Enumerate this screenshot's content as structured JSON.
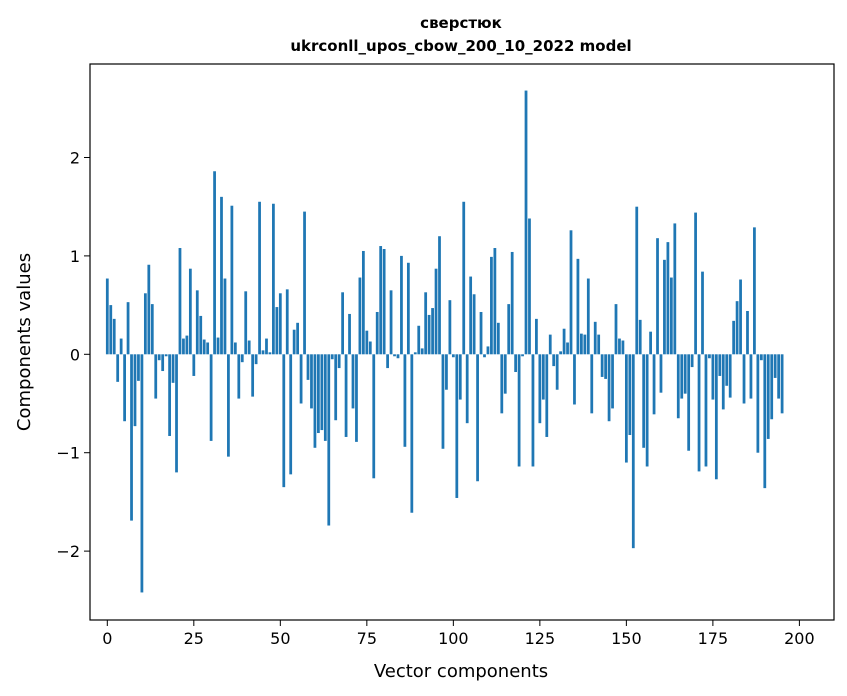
{
  "chart_data": {
    "type": "bar",
    "title_lines": [
      "сверстюк",
      "ukrconll_upos_cbow_200_10_2022 model"
    ],
    "xlabel": "Vector components",
    "ylabel": "Components values",
    "xlim": [
      -5,
      210
    ],
    "ylim": [
      -2.7,
      2.95
    ],
    "xticks": [
      0,
      25,
      50,
      75,
      100,
      125,
      150,
      175,
      200
    ],
    "yticks": [
      -2,
      -1,
      0,
      1,
      2
    ],
    "ytick_labels": [
      "−2",
      "−1",
      "0",
      "1",
      "2"
    ],
    "bar_color": "#1f77b4",
    "grid": false,
    "values": [
      0.77,
      0.5,
      0.36,
      -0.28,
      0.16,
      -0.68,
      0.53,
      -1.69,
      -0.73,
      -0.27,
      -2.42,
      0.62,
      0.91,
      0.51,
      -0.45,
      -0.06,
      -0.17,
      -0.02,
      -0.83,
      -0.29,
      -1.2,
      1.08,
      0.16,
      0.19,
      0.87,
      -0.22,
      0.65,
      0.39,
      0.15,
      0.12,
      -0.88,
      1.86,
      0.17,
      1.6,
      0.77,
      -1.04,
      1.51,
      0.12,
      -0.45,
      -0.08,
      0.64,
      0.14,
      -0.43,
      -0.1,
      1.55,
      0.04,
      0.16,
      0.02,
      1.53,
      0.48,
      0.62,
      -1.35,
      0.66,
      -1.22,
      0.25,
      0.32,
      -0.5,
      1.45,
      -0.26,
      -0.55,
      -0.95,
      -0.8,
      -0.77,
      -0.88,
      -1.74,
      -0.05,
      -0.67,
      -0.14,
      0.63,
      -0.84,
      0.41,
      -0.55,
      -0.89,
      0.78,
      1.05,
      0.24,
      0.13,
      -1.26,
      0.43,
      1.1,
      1.07,
      -0.14,
      0.65,
      -0.02,
      -0.04,
      1.0,
      -0.94,
      0.93,
      -1.61,
      0.02,
      0.29,
      0.06,
      0.63,
      0.4,
      0.47,
      0.87,
      1.2,
      -0.96,
      -0.36,
      0.55,
      -0.03,
      -1.46,
      -0.46,
      1.55,
      -0.7,
      0.79,
      0.61,
      -1.29,
      0.43,
      -0.03,
      0.08,
      0.99,
      1.08,
      0.32,
      -0.6,
      -0.4,
      0.51,
      1.04,
      -0.18,
      -1.14,
      -0.02,
      2.68,
      1.38,
      -1.14,
      0.36,
      -0.7,
      -0.46,
      -0.84,
      0.2,
      -0.12,
      -0.36,
      0.03,
      0.26,
      0.12,
      1.26,
      -0.51,
      0.97,
      0.21,
      0.2,
      0.77,
      -0.6,
      0.33,
      0.2,
      -0.23,
      -0.25,
      -0.68,
      -0.55,
      0.51,
      0.16,
      0.14,
      -1.1,
      -0.82,
      -1.97,
      1.5,
      0.35,
      -0.95,
      -1.14,
      0.23,
      -0.61,
      1.18,
      -0.39,
      0.96,
      1.14,
      0.78,
      1.33,
      -0.65,
      -0.45,
      -0.4,
      -0.98,
      -0.13,
      1.44,
      -1.19,
      0.84,
      -1.14,
      -0.04,
      -0.46,
      -1.27,
      -0.22,
      -0.56,
      -0.32,
      -0.44,
      0.34,
      0.54,
      0.76,
      -0.5,
      0.44,
      -0.45,
      1.29,
      -1.0,
      -0.06,
      -1.36,
      -0.86,
      -0.66,
      -0.24,
      -0.45,
      -0.6
    ]
  }
}
